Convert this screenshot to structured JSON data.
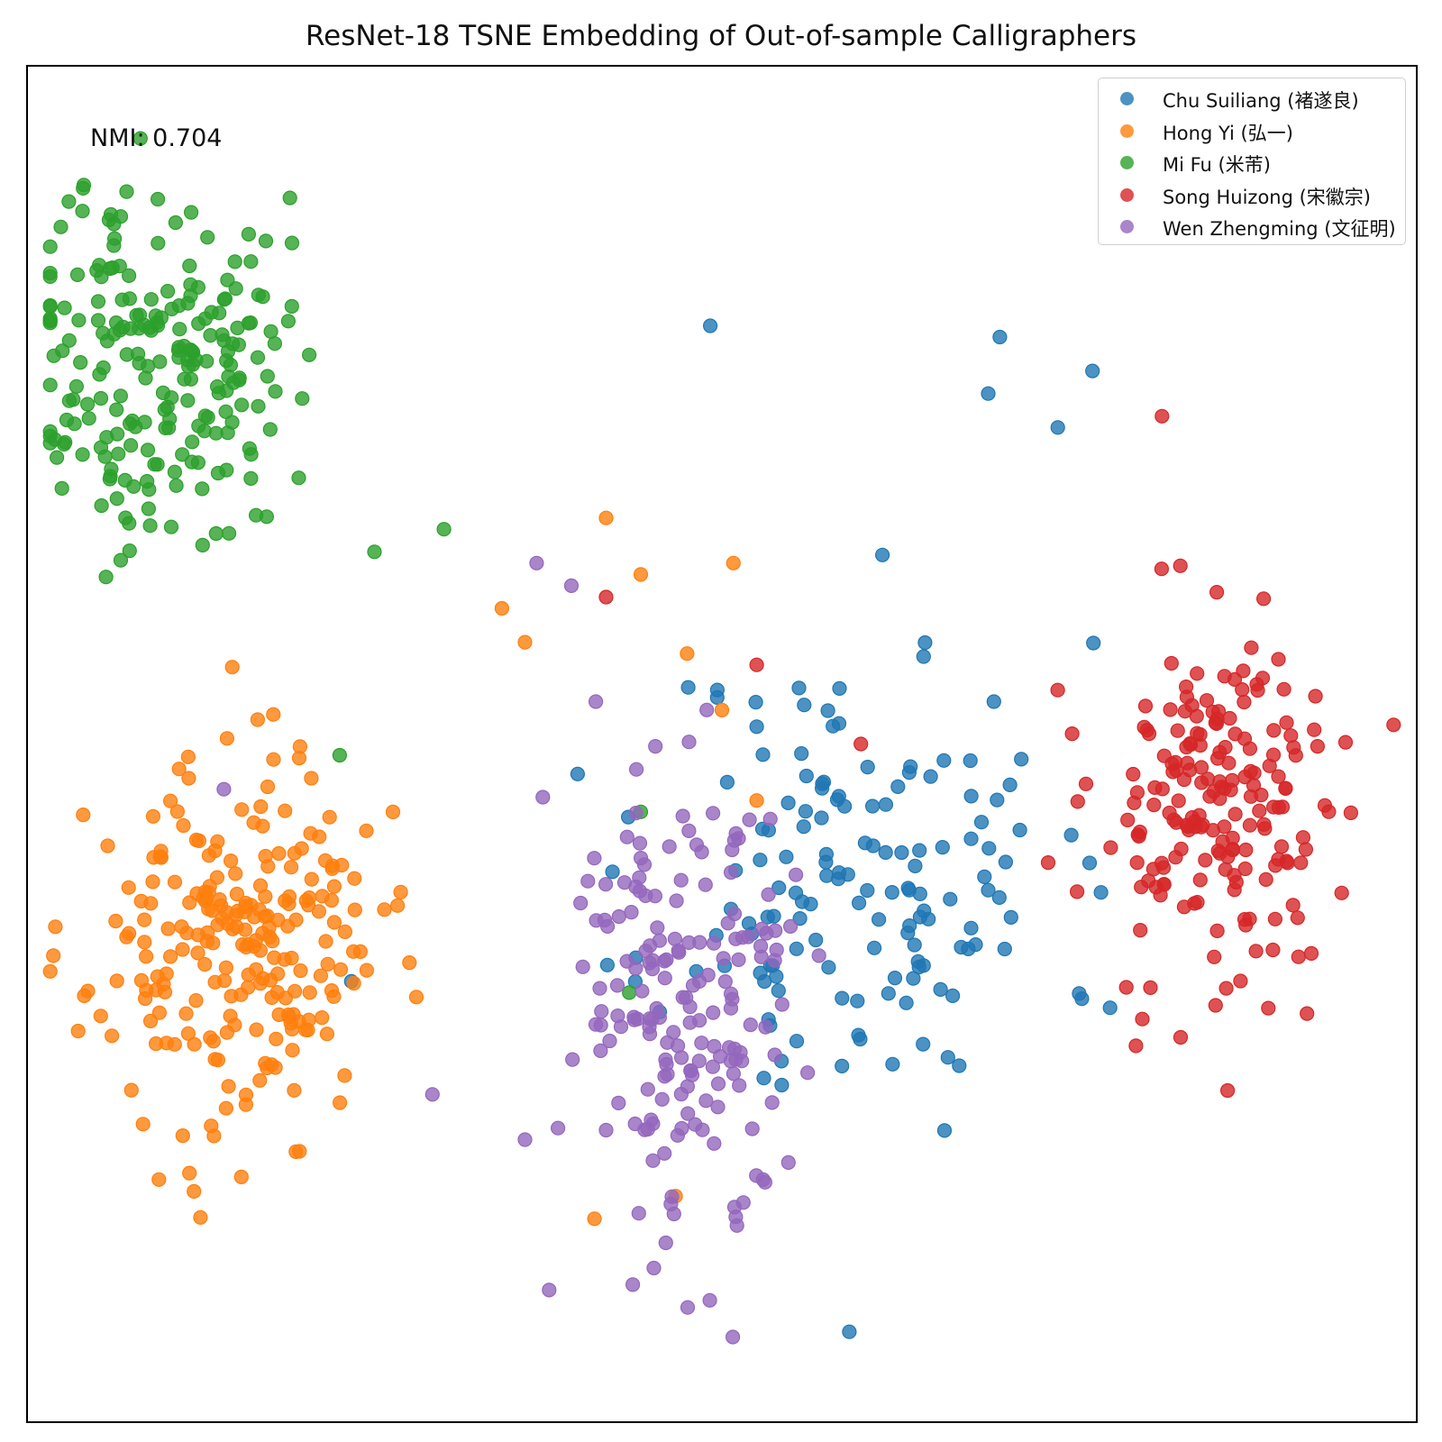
{
  "chart_data": {
    "type": "scatter",
    "title": "ResNet-18 TSNE Embedding of Out-of-sample Calligraphers",
    "xlabel": "",
    "ylabel": "",
    "xlim": [
      -60,
      60
    ],
    "ylim": [
      -60,
      60
    ],
    "ticks": "none",
    "grid": false,
    "legend_position": "top-right",
    "annotation": "NMI: 0.704",
    "series": [
      {
        "name": "Chu Suiliang (褚遂良)",
        "color": "#1f77b4",
        "cx": 12,
        "cy": -12,
        "sx": 14,
        "sy": 17,
        "n": 150,
        "seed": 11,
        "extra": [
          [
            24,
            36
          ],
          [
            23,
            31
          ],
          [
            29,
            28
          ],
          [
            32,
            33
          ],
          [
            -1,
            37
          ],
          [
            11,
            -52
          ],
          [
            -32,
            -21
          ]
        ]
      },
      {
        "name": "Hong Yi (弘一)",
        "color": "#ff7f0e",
        "cx": -42,
        "cy": -18,
        "sx": 10,
        "sy": 13,
        "n": 240,
        "seed": 23,
        "extra": [
          [
            -19,
            12
          ],
          [
            -17,
            9
          ],
          [
            -10,
            20
          ],
          [
            -7,
            15
          ],
          [
            1,
            16
          ],
          [
            -3,
            8
          ],
          [
            0,
            3
          ],
          [
            3,
            -5
          ],
          [
            -4,
            -40
          ],
          [
            -11,
            -42
          ]
        ]
      },
      {
        "name": "Mi Fu (米芾)",
        "color": "#2ca02c",
        "cx": -49,
        "cy": 34,
        "sx": 9,
        "sy": 13,
        "n": 225,
        "seed": 37,
        "extra": [
          [
            -24,
            19
          ],
          [
            -30,
            17
          ],
          [
            -33,
            -1
          ],
          [
            -7,
            -6
          ],
          [
            -8,
            -22
          ]
        ]
      },
      {
        "name": "Song Huizong (宋徽宗)",
        "color": "#d62728",
        "cx": 43,
        "cy": -6,
        "sx": 9,
        "sy": 14,
        "n": 195,
        "seed": 53,
        "extra": [
          [
            -10,
            13
          ],
          [
            3,
            7
          ],
          [
            12,
            0
          ],
          [
            38,
            29
          ]
        ]
      },
      {
        "name": "Wen Zhengming (文征明)",
        "color": "#9467bd",
        "cx": -3,
        "cy": -24,
        "sx": 9,
        "sy": 19,
        "n": 185,
        "seed": 71,
        "extra": [
          [
            -16,
            16
          ],
          [
            -13,
            14
          ],
          [
            -43,
            -4
          ],
          [
            -25,
            -31
          ],
          [
            -17,
            -35
          ]
        ]
      }
    ]
  }
}
